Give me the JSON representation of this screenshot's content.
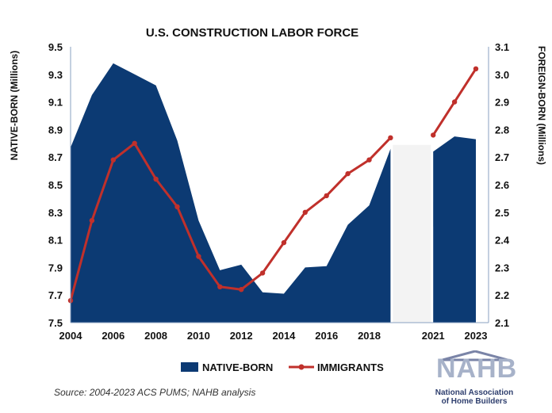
{
  "chart_data": {
    "type": "area",
    "title": "U.S. CONSTRUCTION LABOR FORCE",
    "ylabel_left": "NATIVE-BORN (Millions)",
    "ylabel_right": "FOREIGN-BORN (Millions)",
    "ylim_left": [
      7.5,
      9.5
    ],
    "ylim_right": [
      2.1,
      3.1
    ],
    "xlim": [
      2004,
      2023
    ],
    "x_ticks": [
      "2004",
      "2006",
      "2008",
      "2010",
      "2012",
      "2014",
      "2016",
      "2018",
      "2021",
      "2023"
    ],
    "y_ticks_left": [
      "9.5",
      "9.3",
      "9.1",
      "8.9",
      "8.7",
      "8.5",
      "8.3",
      "8.1",
      "7.9",
      "7.7",
      "7.5"
    ],
    "y_ticks_right": [
      "3.1",
      "3.0",
      "2.9",
      "2.8",
      "2.7",
      "2.6",
      "2.5",
      "2.4",
      "2.3",
      "2.2",
      "2.1"
    ],
    "gap_years": [
      2020
    ],
    "legend_position": "bottom",
    "grid": false,
    "series": [
      {
        "name": "NATIVE-BORN",
        "type": "area",
        "axis": "left",
        "color": "#0c3a73",
        "points": [
          [
            2004,
            8.77
          ],
          [
            2005,
            9.15
          ],
          [
            2006,
            9.38
          ],
          [
            2007,
            9.3
          ],
          [
            2008,
            9.22
          ],
          [
            2009,
            8.82
          ],
          [
            2010,
            8.24
          ],
          [
            2011,
            7.88
          ],
          [
            2012,
            7.92
          ],
          [
            2013,
            7.72
          ],
          [
            2014,
            7.71
          ],
          [
            2015,
            7.9
          ],
          [
            2016,
            7.91
          ],
          [
            2017,
            8.21
          ],
          [
            2018,
            8.35
          ],
          [
            2019,
            8.76
          ],
          [
            2021,
            8.74
          ],
          [
            2022,
            8.85
          ],
          [
            2023,
            8.83
          ]
        ]
      },
      {
        "name": "IMMIGRANTS",
        "type": "line",
        "axis": "right",
        "color": "#c0302b",
        "points": [
          [
            2004,
            2.18
          ],
          [
            2005,
            2.47
          ],
          [
            2006,
            2.69
          ],
          [
            2007,
            2.75
          ],
          [
            2008,
            2.62
          ],
          [
            2009,
            2.52
          ],
          [
            2010,
            2.34
          ],
          [
            2011,
            2.23
          ],
          [
            2012,
            2.22
          ],
          [
            2013,
            2.28
          ],
          [
            2014,
            2.39
          ],
          [
            2015,
            2.5
          ],
          [
            2016,
            2.56
          ],
          [
            2017,
            2.64
          ],
          [
            2018,
            2.69
          ],
          [
            2019,
            2.77
          ],
          [
            2021,
            2.78
          ],
          [
            2022,
            2.9
          ],
          [
            2023,
            3.02
          ]
        ]
      }
    ]
  },
  "source_note": "Source: 2004-2023 ACS PUMS; NAHB analysis",
  "logo": {
    "word": "NAHB",
    "subtitle_line1": "National Association",
    "subtitle_line2": "of Home Builders"
  },
  "colors": {
    "area": "#0c3a73",
    "line": "#c0302b",
    "gap_fill": "#f3f3f3",
    "logo_word": "#a7b2c9",
    "logo_text": "#2f3f6e",
    "logo_roof": "#7a84a7"
  }
}
